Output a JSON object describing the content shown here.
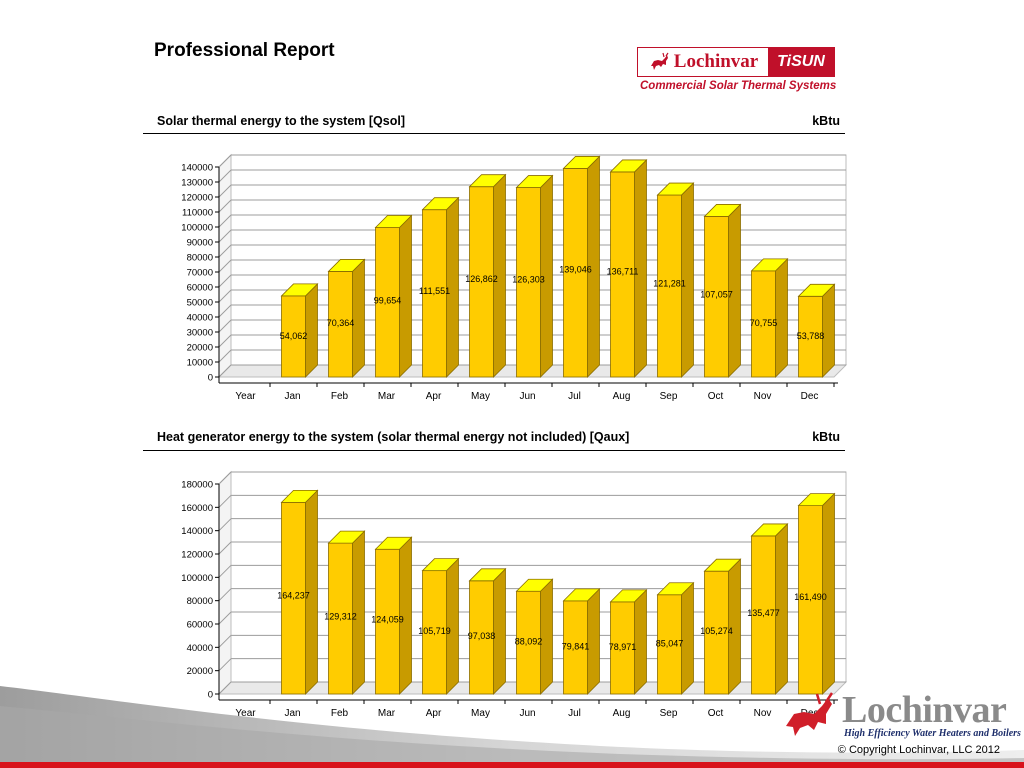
{
  "report": {
    "title": "Professional Report",
    "brand_name": "Lochinvar",
    "brand_product": "TiSUN",
    "brand_tagline": "Commercial Solar Thermal Systems",
    "footer_logo_name": "Lochinvar",
    "footer_logo_tagline": "High Efficiency Water Heaters and Boilers",
    "copyright": "© Copyright Lochinvar, LLC  2012",
    "accent_red": "#c0102a"
  },
  "chart_data": [
    {
      "type": "bar",
      "title": "Solar thermal energy to the system [Qsol]",
      "unit": "kBtu",
      "categories": [
        "Year",
        "Jan",
        "Feb",
        "Mar",
        "Apr",
        "May",
        "Jun",
        "Jul",
        "Aug",
        "Sep",
        "Oct",
        "Nov",
        "Dec"
      ],
      "values": [
        null,
        54062,
        70364,
        99654,
        111551,
        126862,
        126303,
        139046,
        136711,
        121281,
        107057,
        70755,
        53788
      ],
      "labels": [
        "",
        "54,062",
        "70,364",
        "99,654",
        "111,551",
        "126,862",
        "126,303",
        "139,046",
        "136,711",
        "121,281",
        "107,057",
        "70,755",
        "53,788"
      ],
      "ylim": [
        0,
        140000
      ],
      "yticks": [
        0,
        10000,
        20000,
        30000,
        40000,
        50000,
        60000,
        70000,
        80000,
        90000,
        100000,
        110000,
        120000,
        130000,
        140000
      ],
      "grid": true,
      "bar_color": "#ffcc00",
      "bar_top_color": "#ffff00",
      "bar_side_color": "#c89b00"
    },
    {
      "type": "bar",
      "title": "Heat generator energy to the system (solar thermal energy not included) [Qaux]",
      "unit": "kBtu",
      "categories": [
        "Year",
        "Jan",
        "Feb",
        "Mar",
        "Apr",
        "May",
        "Jun",
        "Jul",
        "Aug",
        "Sep",
        "Oct",
        "Nov",
        "Dec"
      ],
      "values": [
        null,
        164237,
        129312,
        124059,
        105719,
        97038,
        88092,
        79841,
        78971,
        85047,
        105274,
        135477,
        161490
      ],
      "labels": [
        "",
        "164,237",
        "129,312",
        "124,059",
        "105,719",
        "97,038",
        "88,092",
        "79,841",
        "78,971",
        "85,047",
        "105,274",
        "135,477",
        "161,490"
      ],
      "ylim": [
        0,
        180000
      ],
      "yticks": [
        0,
        20000,
        40000,
        60000,
        80000,
        100000,
        120000,
        140000,
        160000,
        180000
      ],
      "grid": true,
      "bar_color": "#ffcc00",
      "bar_top_color": "#ffff00",
      "bar_side_color": "#c89b00"
    }
  ]
}
